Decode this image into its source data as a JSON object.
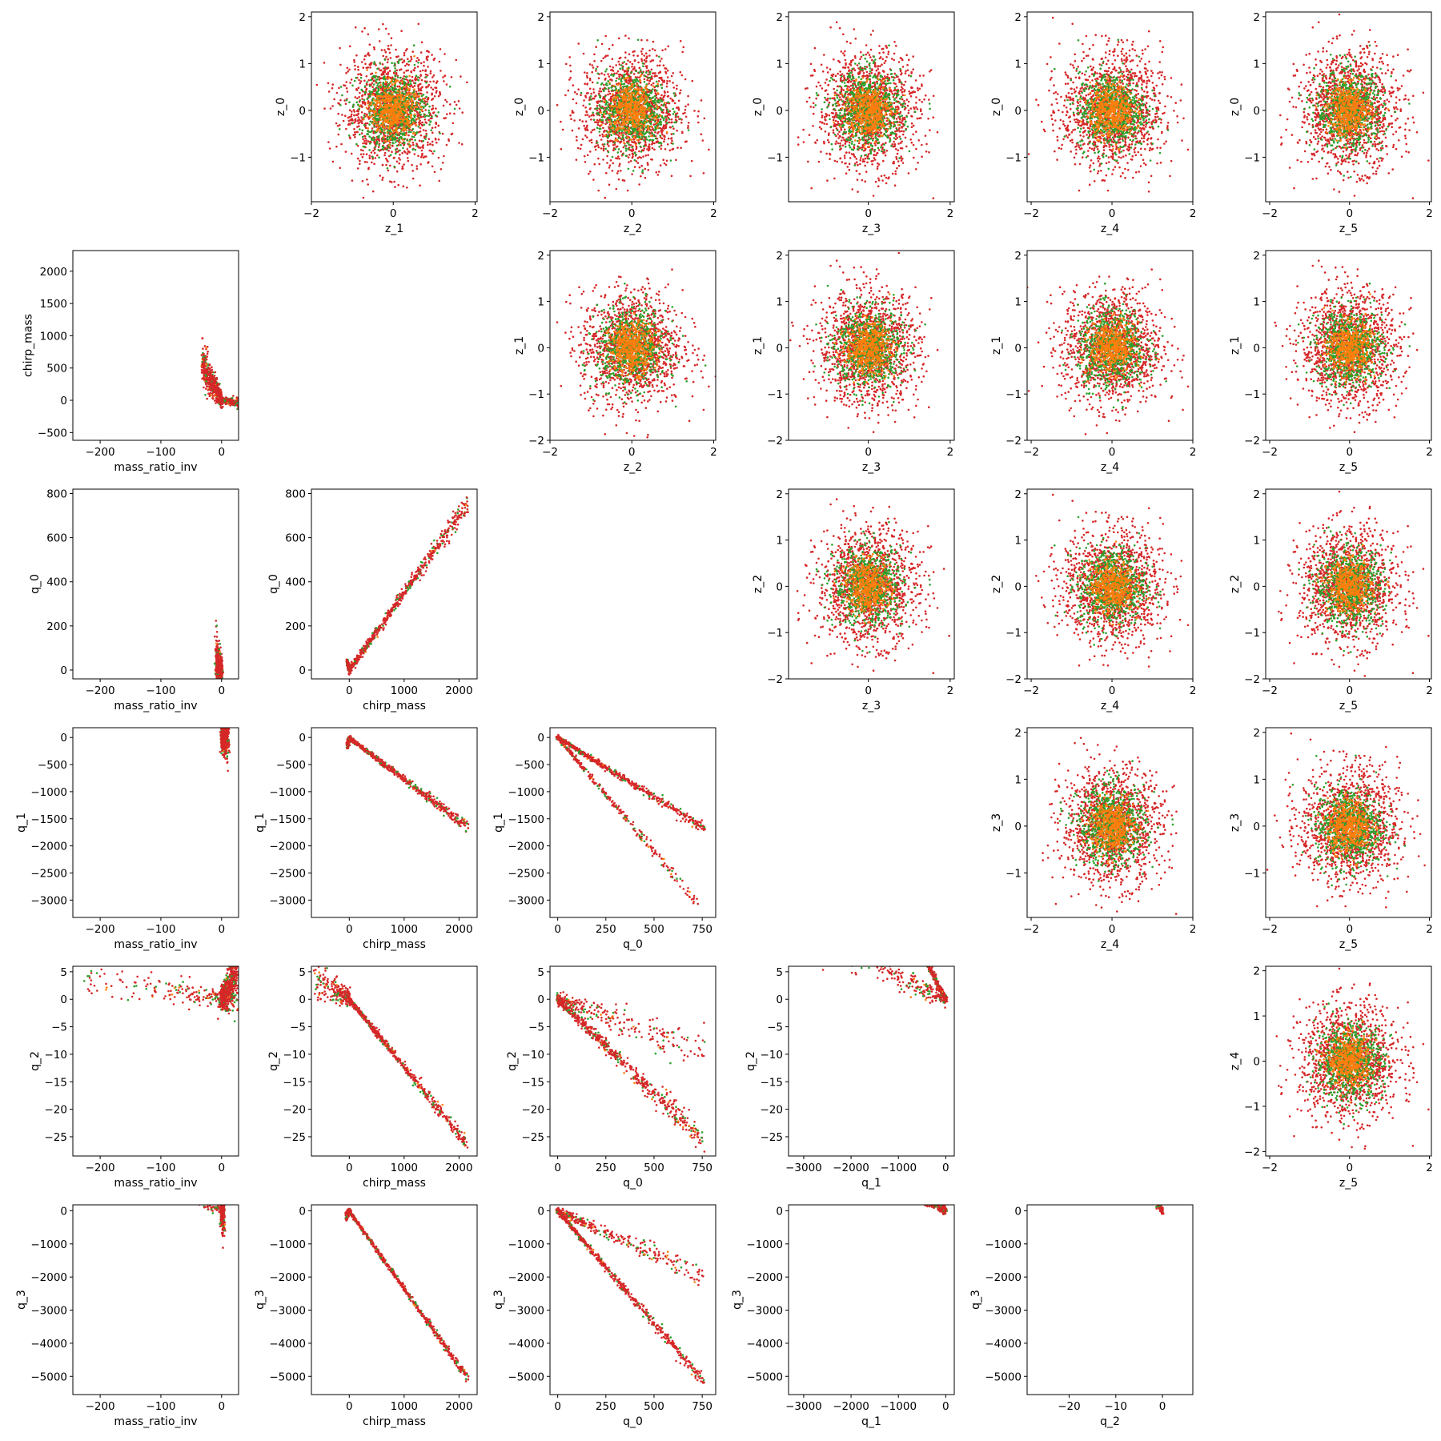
{
  "colors": {
    "red": "#d62728",
    "green": "#2ca02c",
    "orange": "#ff7f0e"
  },
  "chart_data": [
    {
      "type": "scatter",
      "kind": "gaussian",
      "row": 0,
      "col": 1,
      "xlabel": "z_1",
      "ylabel": "z_0",
      "xlim": [
        -2,
        2.05
      ],
      "ylim": [
        -1.95,
        2.1
      ],
      "xticks": [
        -2,
        0,
        2
      ],
      "yticks": [
        -1,
        0,
        1,
        2
      ]
    },
    {
      "type": "scatter",
      "kind": "gaussian",
      "row": 0,
      "col": 2,
      "xlabel": "z_2",
      "ylabel": "z_0",
      "xlim": [
        -2,
        2.05
      ],
      "ylim": [
        -1.95,
        2.1
      ],
      "xticks": [
        -2,
        0,
        2
      ],
      "yticks": [
        -1,
        0,
        1,
        2
      ]
    },
    {
      "type": "scatter",
      "kind": "gaussian",
      "row": 0,
      "col": 3,
      "xlabel": "z_3",
      "ylabel": "z_0",
      "xlim": [
        -1.95,
        2.1
      ],
      "ylim": [
        -1.95,
        2.1
      ],
      "xticks": [
        0,
        2
      ],
      "yticks": [
        -1,
        0,
        1,
        2
      ]
    },
    {
      "type": "scatter",
      "kind": "gaussian",
      "row": 0,
      "col": 4,
      "xlabel": "z_4",
      "ylabel": "z_0",
      "xlim": [
        -2.1,
        2
      ],
      "ylim": [
        -1.95,
        2.1
      ],
      "xticks": [
        -2,
        0,
        2
      ],
      "yticks": [
        -1,
        0,
        1,
        2
      ]
    },
    {
      "type": "scatter",
      "kind": "gaussian",
      "row": 0,
      "col": 5,
      "xlabel": "z_5",
      "ylabel": "z_0",
      "xlim": [
        -2.1,
        2.05
      ],
      "ylim": [
        -1.95,
        2.1
      ],
      "xticks": [
        -2,
        0,
        2
      ],
      "yticks": [
        -1,
        0,
        1,
        2
      ]
    },
    {
      "type": "scatter",
      "kind": "vshape",
      "row": 1,
      "col": 0,
      "xlabel": "mass_ratio_inv",
      "ylabel": "chirp_mass",
      "xlim": [
        -245,
        28
      ],
      "ylim": [
        -620,
        2320
      ],
      "xticks": [
        -200,
        -100,
        0
      ],
      "yticks": [
        -500,
        0,
        500,
        1000,
        1500,
        2000
      ],
      "branches": [
        {
          "dx": -1,
          "dy": 18,
          "sigma": 120,
          "n": 520
        },
        {
          "dx": 1.55,
          "dy": -2,
          "sigma": 40,
          "n": 320
        }
      ]
    },
    {
      "type": "scatter",
      "kind": "gaussian",
      "row": 1,
      "col": 2,
      "xlabel": "z_2",
      "ylabel": "z_1",
      "xlim": [
        -2,
        2.05
      ],
      "ylim": [
        -2,
        2.1
      ],
      "xticks": [
        -2,
        0,
        2
      ],
      "yticks": [
        -2,
        -1,
        0,
        1,
        2
      ]
    },
    {
      "type": "scatter",
      "kind": "gaussian",
      "row": 1,
      "col": 3,
      "xlabel": "z_3",
      "ylabel": "z_1",
      "xlim": [
        -1.95,
        2.1
      ],
      "ylim": [
        -2,
        2.1
      ],
      "xticks": [
        0,
        2
      ],
      "yticks": [
        -2,
        -1,
        0,
        1,
        2
      ]
    },
    {
      "type": "scatter",
      "kind": "gaussian",
      "row": 1,
      "col": 4,
      "xlabel": "z_4",
      "ylabel": "z_1",
      "xlim": [
        -2.1,
        2
      ],
      "ylim": [
        -2,
        2.1
      ],
      "xticks": [
        -2,
        0,
        2
      ],
      "yticks": [
        -2,
        -1,
        0,
        1,
        2
      ]
    },
    {
      "type": "scatter",
      "kind": "gaussian",
      "row": 1,
      "col": 5,
      "xlabel": "z_5",
      "ylabel": "z_1",
      "xlim": [
        -2.1,
        2.05
      ],
      "ylim": [
        -2,
        2.1
      ],
      "xticks": [
        -2,
        0,
        2
      ],
      "yticks": [
        -2,
        -1,
        0,
        1,
        2
      ]
    },
    {
      "type": "scatter",
      "kind": "vshape",
      "row": 2,
      "col": 0,
      "xlabel": "mass_ratio_inv",
      "ylabel": "q_0",
      "xlim": [
        -245,
        28
      ],
      "ylim": [
        -40,
        820
      ],
      "xticks": [
        -200,
        -100,
        0
      ],
      "yticks": [
        0,
        200,
        400,
        600,
        800
      ],
      "branches": [
        {
          "dx": -1,
          "dy": 4,
          "sigma": 50,
          "n": 620
        }
      ]
    },
    {
      "type": "scatter",
      "kind": "vshape",
      "row": 2,
      "col": 1,
      "xlabel": "chirp_mass",
      "ylabel": "q_0",
      "xlim": [
        -690,
        2330
      ],
      "ylim": [
        -40,
        820
      ],
      "xticks": [
        0,
        1000,
        2000
      ],
      "yticks": [
        0,
        200,
        400,
        600,
        800
      ],
      "branches": [
        {
          "dx": 1,
          "dy": 0.35,
          "sigma": 18,
          "n": 520
        },
        {
          "dx": -1,
          "dy": 1.25,
          "sigma": 6,
          "n": 220
        }
      ]
    },
    {
      "type": "scatter",
      "kind": "gaussian",
      "row": 2,
      "col": 3,
      "xlabel": "z_3",
      "ylabel": "z_2",
      "xlim": [
        -1.95,
        2.1
      ],
      "ylim": [
        -2,
        2.1
      ],
      "xticks": [
        0,
        2
      ],
      "yticks": [
        -2,
        -1,
        0,
        1,
        2
      ]
    },
    {
      "type": "scatter",
      "kind": "gaussian",
      "row": 2,
      "col": 4,
      "xlabel": "z_4",
      "ylabel": "z_2",
      "xlim": [
        -2.1,
        2
      ],
      "ylim": [
        -2,
        2.1
      ],
      "xticks": [
        -2,
        0,
        2
      ],
      "yticks": [
        -2,
        -1,
        0,
        1,
        2
      ]
    },
    {
      "type": "scatter",
      "kind": "gaussian",
      "row": 2,
      "col": 5,
      "xlabel": "z_5",
      "ylabel": "z_2",
      "xlim": [
        -2.1,
        2.05
      ],
      "ylim": [
        -2,
        2.1
      ],
      "xticks": [
        -2,
        0,
        2
      ],
      "yticks": [
        -2,
        -1,
        0,
        1,
        2
      ]
    },
    {
      "type": "scatter",
      "kind": "vshape",
      "row": 3,
      "col": 0,
      "xlabel": "mass_ratio_inv",
      "ylabel": "q_1",
      "xlim": [
        -245,
        28
      ],
      "ylim": [
        -3320,
        180
      ],
      "xticks": [
        -200,
        -100,
        0
      ],
      "yticks": [
        -3000,
        -2500,
        -2000,
        -1500,
        -1000,
        -500,
        0
      ],
      "branches": [
        {
          "dx": 1,
          "dy": 14,
          "sigma": 240,
          "n": 620
        }
      ]
    },
    {
      "type": "scatter",
      "kind": "vshape",
      "row": 3,
      "col": 1,
      "xlabel": "chirp_mass",
      "ylabel": "q_1",
      "xlim": [
        -690,
        2330
      ],
      "ylim": [
        -3320,
        180
      ],
      "xticks": [
        0,
        1000,
        2000
      ],
      "yticks": [
        -3000,
        -2500,
        -2000,
        -1500,
        -1000,
        -500,
        0
      ],
      "branches": [
        {
          "dx": 1,
          "dy": -0.77,
          "sigma": 40,
          "n": 480
        },
        {
          "dx": -1,
          "dy": -4.9,
          "sigma": 25,
          "n": 220
        }
      ]
    },
    {
      "type": "scatter",
      "kind": "vshape",
      "row": 3,
      "col": 2,
      "xlabel": "q_0",
      "ylabel": "q_1",
      "xlim": [
        -40,
        820
      ],
      "ylim": [
        -3320,
        180
      ],
      "xticks": [
        0,
        250,
        500,
        750
      ],
      "yticks": [
        -3000,
        -2500,
        -2000,
        -1500,
        -1000,
        -500,
        0
      ],
      "branches": [
        {
          "dx": 1,
          "dy": -2.2,
          "sigma": 40,
          "n": 420
        },
        {
          "dx": 1,
          "dy": -4.2,
          "sigma": 40,
          "n": 300
        }
      ]
    },
    {
      "type": "scatter",
      "kind": "gaussian",
      "row": 3,
      "col": 4,
      "xlabel": "z_4",
      "ylabel": "z_3",
      "xlim": [
        -2.1,
        2
      ],
      "ylim": [
        -1.95,
        2.1
      ],
      "xticks": [
        -2,
        0,
        2
      ],
      "yticks": [
        -1,
        0,
        1,
        2
      ]
    },
    {
      "type": "scatter",
      "kind": "gaussian",
      "row": 3,
      "col": 5,
      "xlabel": "z_5",
      "ylabel": "z_3",
      "xlim": [
        -2.1,
        2.05
      ],
      "ylim": [
        -1.95,
        2.1
      ],
      "xticks": [
        -2,
        0,
        2
      ],
      "yticks": [
        -1,
        0,
        1,
        2
      ]
    },
    {
      "type": "scatter",
      "kind": "vshape",
      "row": 4,
      "col": 0,
      "xlabel": "mass_ratio_inv",
      "ylabel": "q_2",
      "xlim": [
        -245,
        28
      ],
      "ylim": [
        -28.5,
        6
      ],
      "xticks": [
        -200,
        -100,
        0
      ],
      "yticks": [
        -25,
        -20,
        -15,
        -10,
        -5,
        0,
        5
      ],
      "branches": [
        {
          "dx": 1,
          "dy": 0.18,
          "sigma": 2.2,
          "n": 560
        },
        {
          "dx": -1,
          "dy": 0.02,
          "sigma": 1.8,
          "n": 180
        }
      ]
    },
    {
      "type": "scatter",
      "kind": "vshape",
      "row": 4,
      "col": 1,
      "xlabel": "chirp_mass",
      "ylabel": "q_2",
      "xlim": [
        -690,
        2330
      ],
      "ylim": [
        -28.5,
        6
      ],
      "xticks": [
        0,
        1000,
        2000
      ],
      "yticks": [
        -25,
        -20,
        -15,
        -10,
        -5,
        0,
        5
      ],
      "branches": [
        {
          "dx": 1,
          "dy": -0.0123,
          "sigma": 0.45,
          "n": 520
        },
        {
          "dx": -1,
          "dy": 0.007,
          "sigma": 1.6,
          "n": 220
        }
      ]
    },
    {
      "type": "scatter",
      "kind": "vshape",
      "row": 4,
      "col": 2,
      "xlabel": "q_0",
      "ylabel": "q_2",
      "xlim": [
        -40,
        820
      ],
      "ylim": [
        -28.5,
        6
      ],
      "xticks": [
        0,
        250,
        500,
        750
      ],
      "yticks": [
        -25,
        -20,
        -15,
        -10,
        -5,
        0,
        5
      ],
      "branches": [
        {
          "dx": 1,
          "dy": -0.034,
          "sigma": 0.9,
          "n": 460
        },
        {
          "dx": 1,
          "dy": -0.012,
          "sigma": 1.5,
          "n": 260
        }
      ]
    },
    {
      "type": "scatter",
      "kind": "vshape",
      "row": 4,
      "col": 3,
      "xlabel": "q_1",
      "ylabel": "q_2",
      "xlim": [
        -3320,
        180
      ],
      "ylim": [
        -28.5,
        6
      ],
      "xticks": [
        -3000,
        -2000,
        -1000,
        0
      ],
      "yticks": [
        -25,
        -20,
        -15,
        -10,
        -5,
        0,
        5
      ],
      "branches": [
        {
          "dx": -1,
          "dy": 0.0165,
          "sigma": 0.6,
          "n": 460
        },
        {
          "dx": -1,
          "dy": 0.0042,
          "sigma": 1.6,
          "n": 300
        }
      ]
    },
    {
      "type": "scatter",
      "kind": "gaussian",
      "row": 4,
      "col": 5,
      "xlabel": "z_5",
      "ylabel": "z_4",
      "xlim": [
        -2.1,
        2.05
      ],
      "ylim": [
        -2.1,
        2.1
      ],
      "xticks": [
        -2,
        0,
        2
      ],
      "yticks": [
        -2,
        -1,
        0,
        1,
        2
      ]
    },
    {
      "type": "scatter",
      "kind": "vshape",
      "row": 5,
      "col": 0,
      "xlabel": "mass_ratio_inv",
      "ylabel": "q_3",
      "xlim": [
        -245,
        28
      ],
      "ylim": [
        -5550,
        180
      ],
      "xticks": [
        -200,
        -100,
        0
      ],
      "yticks": [
        -5000,
        -4000,
        -3000,
        -2000,
        -1000,
        0
      ],
      "branches": [
        {
          "dx": 1,
          "dy": 38,
          "sigma": 420,
          "n": 560
        },
        {
          "dx": -1,
          "dy": 8.5,
          "sigma": 150,
          "n": 220
        }
      ]
    },
    {
      "type": "scatter",
      "kind": "vshape",
      "row": 5,
      "col": 1,
      "xlabel": "chirp_mass",
      "ylabel": "q_3",
      "xlim": [
        -690,
        2330
      ],
      "ylim": [
        -5550,
        180
      ],
      "xticks": [
        0,
        1000,
        2000
      ],
      "yticks": [
        -5000,
        -4000,
        -3000,
        -2000,
        -1000,
        0
      ],
      "branches": [
        {
          "dx": 1,
          "dy": -2.35,
          "sigma": 50,
          "n": 500
        },
        {
          "dx": -1,
          "dy": -3.0,
          "sigma": 60,
          "n": 200
        }
      ]
    },
    {
      "type": "scatter",
      "kind": "vshape",
      "row": 5,
      "col": 2,
      "xlabel": "q_0",
      "ylabel": "q_3",
      "xlim": [
        -40,
        820
      ],
      "ylim": [
        -5550,
        180
      ],
      "xticks": [
        0,
        250,
        500,
        750
      ],
      "yticks": [
        -5000,
        -4000,
        -3000,
        -2000,
        -1000,
        0
      ],
      "branches": [
        {
          "dx": 1,
          "dy": -6.8,
          "sigma": 80,
          "n": 460
        },
        {
          "dx": 1,
          "dy": -2.6,
          "sigma": 120,
          "n": 300
        }
      ]
    },
    {
      "type": "scatter",
      "kind": "vshape",
      "row": 5,
      "col": 3,
      "xlabel": "q_1",
      "ylabel": "q_3",
      "xlim": [
        -3320,
        180
      ],
      "ylim": [
        -5550,
        180
      ],
      "xticks": [
        -3000,
        -2000,
        -1000,
        0
      ],
      "yticks": [
        -5000,
        -4000,
        -3000,
        -2000,
        -1000,
        0
      ],
      "branches": [
        {
          "dx": -1,
          "dy": 3.1,
          "sigma": 80,
          "n": 460
        },
        {
          "dx": -1,
          "dy": 0.62,
          "sigma": 120,
          "n": 300
        }
      ]
    },
    {
      "type": "scatter",
      "kind": "vshape",
      "row": 5,
      "col": 4,
      "xlabel": "q_2",
      "ylabel": "q_3",
      "xlim": [
        -29,
        6.5
      ],
      "ylim": [
        -5550,
        180
      ],
      "xticks": [
        -20,
        -10,
        0
      ],
      "yticks": [
        -5000,
        -4000,
        -3000,
        -2000,
        -1000,
        0
      ],
      "branches": [
        {
          "dx": -1,
          "dy": 190,
          "sigma": 130,
          "n": 650
        }
      ]
    }
  ]
}
